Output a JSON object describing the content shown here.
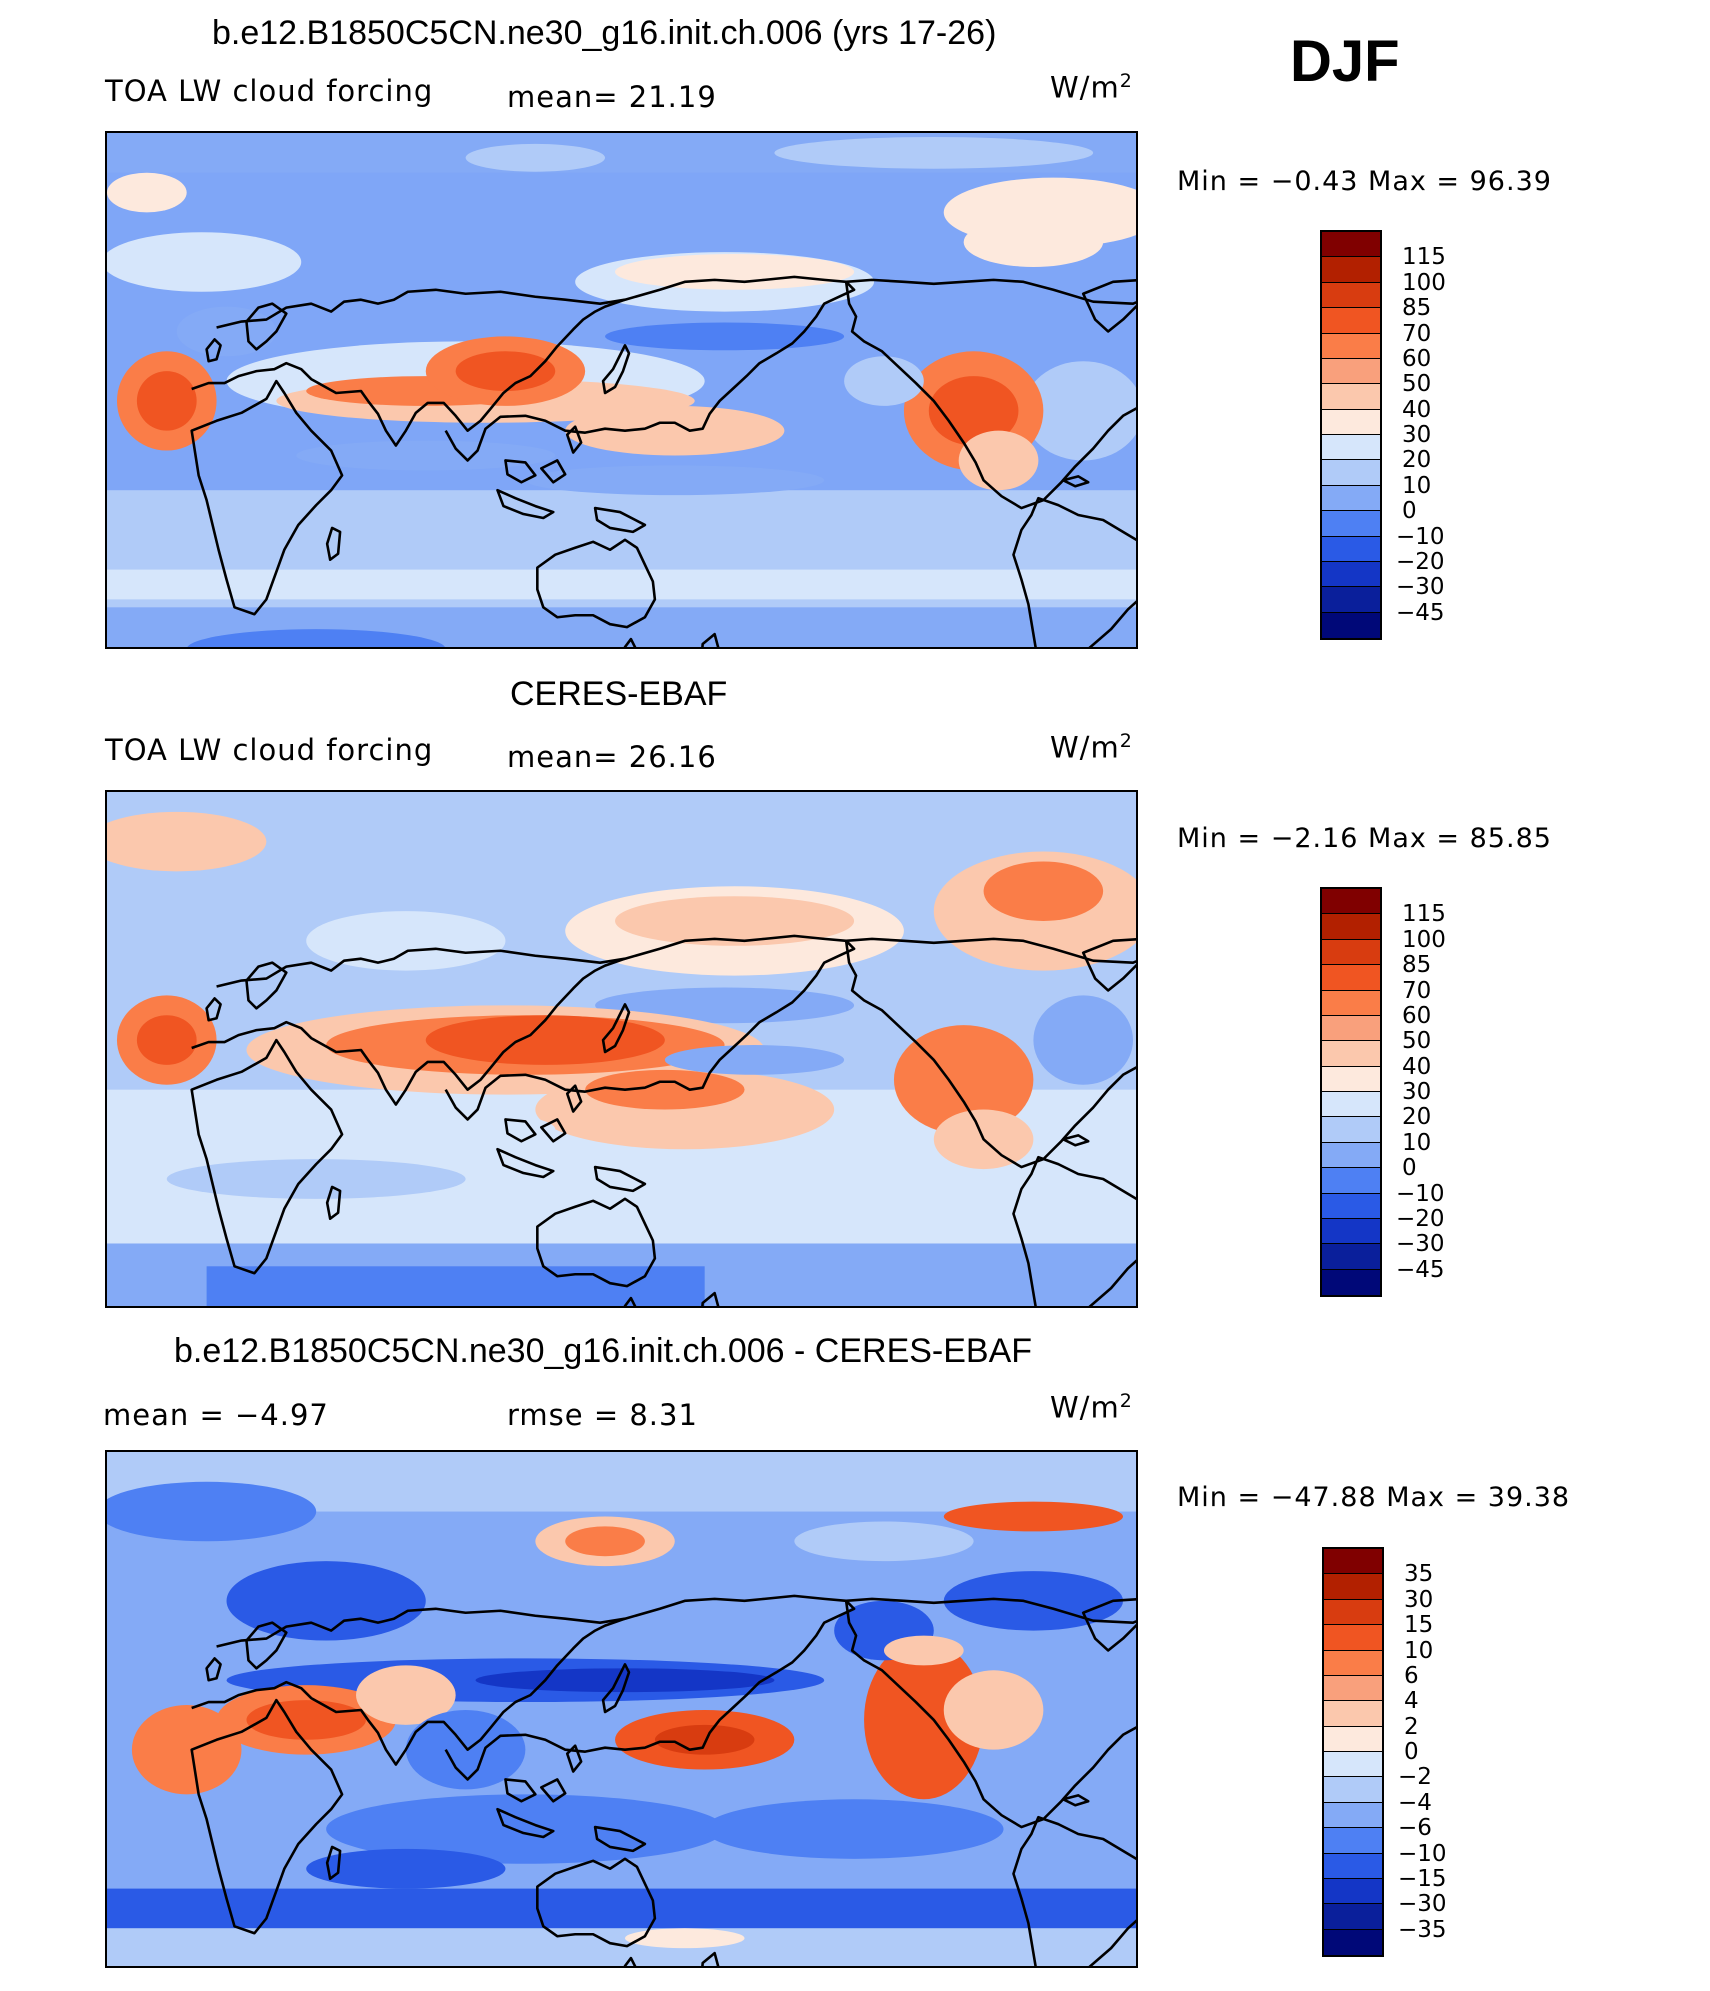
{
  "season": "DJF",
  "units_main": "W/m",
  "units_sup": "2",
  "panels": [
    {
      "title": "b.e12.B1850C5CN.ne30_g16.init.ch.006 (yrs 17-26)",
      "left_label": "TOA LW cloud forcing",
      "middle_label": "mean=   21.19",
      "minmax": "Min  =   −0.43  Max  =    96.39",
      "colorbar": {
        "colors": [
          "#800000",
          "#b22000",
          "#d83c10",
          "#f05522",
          "#fa7d48",
          "#f9a07c",
          "#fbc8ad",
          "#fde9dd",
          "#d6e6fb",
          "#b0cbf8",
          "#84aaf6",
          "#4e80f3",
          "#2a5ae6",
          "#1436c6",
          "#0a1f9b",
          "#000878"
        ],
        "labels": [
          "115",
          "100",
          "85",
          "70",
          "60",
          "50",
          "40",
          "30",
          "20",
          "10",
          "0",
          "−10",
          "−20",
          "−30",
          "−45"
        ]
      }
    },
    {
      "title": "CERES-EBAF",
      "left_label": "TOA LW cloud forcing",
      "middle_label": "mean=   26.16",
      "minmax": "Min  =   −2.16  Max  =    85.85",
      "colorbar": {
        "colors": [
          "#800000",
          "#b22000",
          "#d83c10",
          "#f05522",
          "#fa7d48",
          "#f9a07c",
          "#fbc8ad",
          "#fde9dd",
          "#d6e6fb",
          "#b0cbf8",
          "#84aaf6",
          "#4e80f3",
          "#2a5ae6",
          "#1436c6",
          "#0a1f9b",
          "#000878"
        ],
        "labels": [
          "115",
          "100",
          "85",
          "70",
          "60",
          "50",
          "40",
          "30",
          "20",
          "10",
          "0",
          "−10",
          "−20",
          "−30",
          "−45"
        ]
      }
    },
    {
      "title": "b.e12.B1850C5CN.ne30_g16.init.ch.006 - CERES-EBAF",
      "left_label": "mean  =    −4.97",
      "middle_label": "rmse  =     8.31",
      "minmax": "Min  =  −47.88  Max  =    39.38",
      "colorbar": {
        "colors": [
          "#800000",
          "#b22000",
          "#d83c10",
          "#f05522",
          "#fa7d48",
          "#f9a07c",
          "#fbc8ad",
          "#fde9dd",
          "#d6e6fb",
          "#b0cbf8",
          "#84aaf6",
          "#4e80f3",
          "#2a5ae6",
          "#1436c6",
          "#0a1f9b",
          "#000878"
        ],
        "labels": [
          "35",
          "30",
          "15",
          "10",
          "6",
          "4",
          "2",
          "0",
          "−2",
          "−4",
          "−6",
          "−10",
          "−15",
          "−30",
          "−35"
        ]
      }
    }
  ]
}
